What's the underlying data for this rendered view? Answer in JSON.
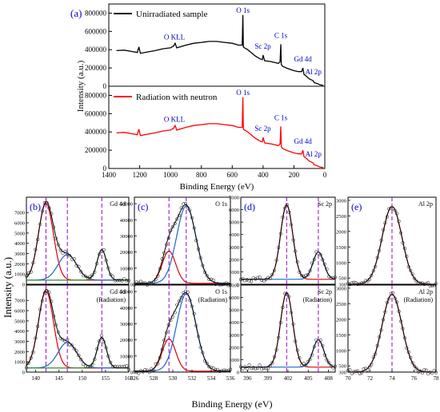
{
  "figure": {
    "top_xlabel": "Binding Energy (eV)",
    "top_ylabel": "Intensity (a.u.)",
    "bottom_xlabel": "Binding Energy (eV)",
    "bottom_ylabel": "Intensity (a.u.)"
  },
  "colors": {
    "unirradiated": "#000000",
    "radiation": "#ff0000",
    "marker": "#0000cc",
    "dashed_line": "#9900cc",
    "fit_red": "#e00000",
    "fit_blue": "#1a66cc",
    "fit_green": "#2e8b2e"
  },
  "chart_data": [
    {
      "panel": "(a)",
      "type": "line",
      "x_ticks": [
        1400,
        1200,
        1000,
        800,
        600,
        400,
        200,
        0
      ],
      "y_ticks": [
        0,
        200000,
        400000,
        600000,
        800000
      ],
      "ylim": [
        0,
        900000
      ],
      "xlim": [
        1400,
        0
      ],
      "series": [
        {
          "name": "Unirradiated sample",
          "x": [
            1350,
            1300,
            1250,
            1215,
            1205,
            1195,
            1150,
            1100,
            1050,
            1000,
            980,
            970,
            960,
            900,
            850,
            800,
            750,
            700,
            650,
            600,
            560,
            535,
            531,
            528,
            520,
            500,
            450,
            420,
            405,
            400,
            390,
            350,
            300,
            290,
            285,
            282,
            275,
            250,
            200,
            170,
            150,
            142,
            135,
            120,
            100,
            75,
            70,
            50,
            30,
            10
          ],
          "y": [
            390000,
            395000,
            380000,
            370000,
            430000,
            360000,
            375000,
            390000,
            410000,
            420000,
            440000,
            470000,
            420000,
            450000,
            470000,
            480000,
            490000,
            490000,
            480000,
            470000,
            450000,
            450000,
            780000,
            430000,
            420000,
            400000,
            330000,
            300000,
            290000,
            340000,
            280000,
            270000,
            250000,
            270000,
            460000,
            240000,
            220000,
            200000,
            170000,
            160000,
            160000,
            200000,
            130000,
            110000,
            80000,
            60000,
            40000,
            30000,
            15000,
            10000
          ]
        },
        {
          "name": "Radiation with neutron",
          "x": [
            1350,
            1300,
            1250,
            1215,
            1205,
            1195,
            1150,
            1100,
            1050,
            1000,
            980,
            970,
            960,
            900,
            850,
            800,
            750,
            700,
            650,
            600,
            560,
            535,
            531,
            528,
            520,
            500,
            450,
            420,
            405,
            400,
            390,
            350,
            300,
            290,
            285,
            282,
            275,
            250,
            200,
            170,
            150,
            142,
            135,
            120,
            100,
            75,
            70,
            50,
            30,
            10
          ],
          "y": [
            390000,
            395000,
            380000,
            370000,
            430000,
            360000,
            375000,
            390000,
            410000,
            420000,
            440000,
            470000,
            420000,
            450000,
            470000,
            480000,
            490000,
            490000,
            480000,
            470000,
            450000,
            450000,
            780000,
            430000,
            420000,
            400000,
            330000,
            300000,
            290000,
            340000,
            280000,
            270000,
            250000,
            270000,
            460000,
            240000,
            220000,
            200000,
            170000,
            160000,
            160000,
            200000,
            130000,
            110000,
            80000,
            60000,
            40000,
            30000,
            15000,
            10000
          ]
        }
      ],
      "annotations": [
        {
          "text": "O 1s",
          "x": 531
        },
        {
          "text": "O KLL",
          "x": 975
        },
        {
          "text": "Sc 2p",
          "x": 402
        },
        {
          "text": "C 1s",
          "x": 285
        },
        {
          "text": "Gd 4d",
          "x": 142
        },
        {
          "text": "Al 2p",
          "x": 74
        }
      ]
    },
    {
      "panel": "(b)",
      "type": "line",
      "title": "Gd 4d",
      "title_bottom": [
        "Gd 4d",
        "(Radiation)"
      ],
      "x_ticks": [
        140,
        145,
        150,
        155,
        160
      ],
      "xlim": [
        138,
        160
      ],
      "y_ticks": [
        0,
        1000,
        2000,
        3000,
        4000,
        5000,
        6000,
        7000
      ],
      "ylim": [
        0,
        8500
      ],
      "peaks_mark_x": [
        142.2,
        146.8,
        154.2
      ],
      "components": [
        {
          "center": 142.2,
          "height": 7500,
          "width": 1.6
        },
        {
          "center": 146.8,
          "height": 2500,
          "width": 2.0
        },
        {
          "center": 154.2,
          "height": 3000,
          "width": 1.0
        }
      ],
      "background": 400
    },
    {
      "panel": "(c)",
      "type": "line",
      "title": "O 1s",
      "title_bottom": [
        "O 1s",
        "(Radiation)"
      ],
      "x_ticks": [
        526,
        528,
        530,
        532,
        534,
        536
      ],
      "xlim": [
        526,
        536
      ],
      "y_ticks": [
        0,
        10000,
        20000,
        30000,
        40000,
        50000
      ],
      "ylim": [
        0,
        54000
      ],
      "peaks_mark_x": [
        529.6,
        531.4
      ],
      "components": [
        {
          "center": 529.6,
          "height": 20000,
          "width": 0.7
        },
        {
          "center": 531.4,
          "height": 48000,
          "width": 1.0
        }
      ],
      "background": 600
    },
    {
      "panel": "(d)",
      "type": "line",
      "title": "Sc 2p",
      "title_bottom": [
        "Sc 2p",
        "(Radiation)"
      ],
      "x_ticks": [
        396,
        399,
        402,
        405,
        408
      ],
      "xlim": [
        395,
        409
      ],
      "y_ticks": [
        0,
        1000,
        2000,
        3000,
        4000,
        5000,
        6000,
        7000
      ],
      "ylim": [
        0,
        7000
      ],
      "peaks_mark_x": [
        401.8,
        406.5
      ],
      "components": [
        {
          "center": 401.8,
          "height": 6000,
          "width": 0.9
        },
        {
          "center": 406.5,
          "height": 2200,
          "width": 0.8
        }
      ],
      "background": 400
    },
    {
      "panel": "(e)",
      "type": "line",
      "title": "Al 2p",
      "title_bottom": [
        "Al 2p",
        "(Radiation)"
      ],
      "x_ticks": [
        70,
        72,
        74,
        76,
        78
      ],
      "xlim": [
        70,
        78
      ],
      "y_ticks": [
        300,
        500,
        1000,
        1500,
        2000,
        2500,
        3000
      ],
      "ylim": [
        300,
        3100
      ],
      "peaks_mark_x": [
        74.0
      ],
      "components": [
        {
          "center": 74.0,
          "height": 2500,
          "width": 0.9
        }
      ],
      "background": 300
    }
  ]
}
